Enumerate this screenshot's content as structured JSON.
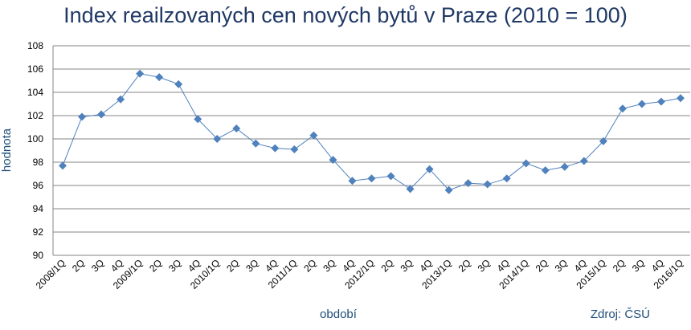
{
  "chart_data": {
    "type": "line",
    "title": "Index reailzovaných cen nových bytů v Praze (2010 = 100)",
    "xlabel": "období",
    "ylabel": "hodnota",
    "source": "Zdroj: ČSÚ",
    "ylim": [
      90,
      108
    ],
    "yticks": [
      90,
      92,
      94,
      96,
      98,
      100,
      102,
      104,
      106,
      108
    ],
    "grid": true,
    "legend": "none",
    "color": "#4f81bd",
    "marker": "diamond",
    "categories": [
      "2008/1Q",
      "2Q",
      "3Q",
      "4Q",
      "2009/1Q",
      "2Q",
      "3Q",
      "4Q",
      "2010/1Q",
      "2Q",
      "3Q",
      "4Q",
      "2011/1Q",
      "2Q",
      "3Q",
      "4Q",
      "2012/1Q",
      "2Q",
      "3Q",
      "4Q",
      "2013/1Q",
      "2Q",
      "3Q",
      "4Q",
      "2014/1Q",
      "2Q",
      "3Q",
      "4Q",
      "2015/1Q",
      "2Q",
      "3Q",
      "4Q",
      "2016/1Q"
    ],
    "series": [
      {
        "values": [
          97.7,
          101.9,
          102.1,
          103.4,
          105.6,
          105.3,
          104.7,
          101.7,
          100.0,
          100.9,
          99.6,
          99.2,
          99.1,
          100.3,
          98.2,
          96.4,
          96.6,
          96.8,
          95.7,
          97.4,
          95.6,
          96.2,
          96.1,
          96.6,
          97.9,
          97.3,
          97.6,
          98.1,
          99.8,
          102.6,
          103.0,
          103.2,
          103.5
        ]
      }
    ]
  }
}
